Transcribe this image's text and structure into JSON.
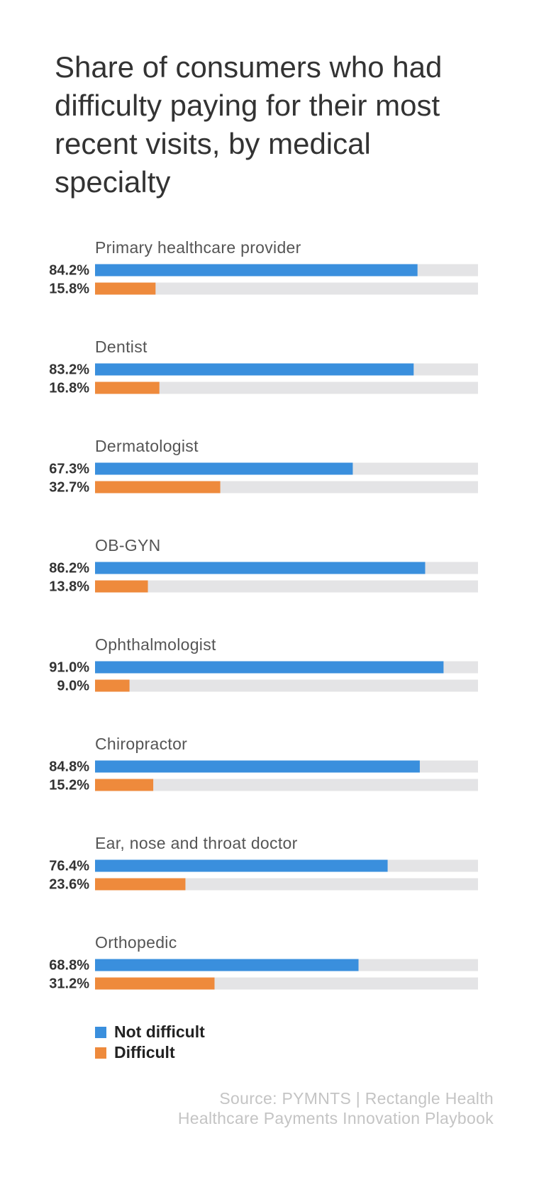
{
  "chart_data": {
    "type": "bar",
    "orientation": "horizontal",
    "title": "Share of consumers who had difficulty paying for their most recent visits, by medical specialty",
    "categories": [
      "Primary healthcare provider",
      "Dentist",
      "Dermatologist",
      "OB-GYN",
      "Ophthalmologist",
      "Chiropractor",
      "Ear, nose and throat doctor",
      "Orthopedic"
    ],
    "xlim": [
      0,
      100
    ],
    "track_color": "#e4e4e6",
    "series": [
      {
        "name": "Not difficult",
        "color": "#3a8fdd",
        "values": [
          84.2,
          83.2,
          67.3,
          86.2,
          91.0,
          84.8,
          76.4,
          68.8
        ],
        "value_labels": [
          "84.2%",
          "83.2%",
          "67.3%",
          "86.2%",
          "91.0%",
          "84.8%",
          "76.4%",
          "68.8%"
        ]
      },
      {
        "name": "Difficult",
        "color": "#ee8a3c",
        "values": [
          15.8,
          16.8,
          32.7,
          13.8,
          9.0,
          15.2,
          23.6,
          31.2
        ],
        "value_labels": [
          "15.8%",
          "16.8%",
          "32.7%",
          "13.8%",
          "9.0%",
          "15.2%",
          "23.6%",
          "31.2%"
        ]
      }
    ],
    "source": [
      "Source: PYMNTS | Rectangle Health",
      "Healthcare Payments Innovation Playbook"
    ]
  }
}
